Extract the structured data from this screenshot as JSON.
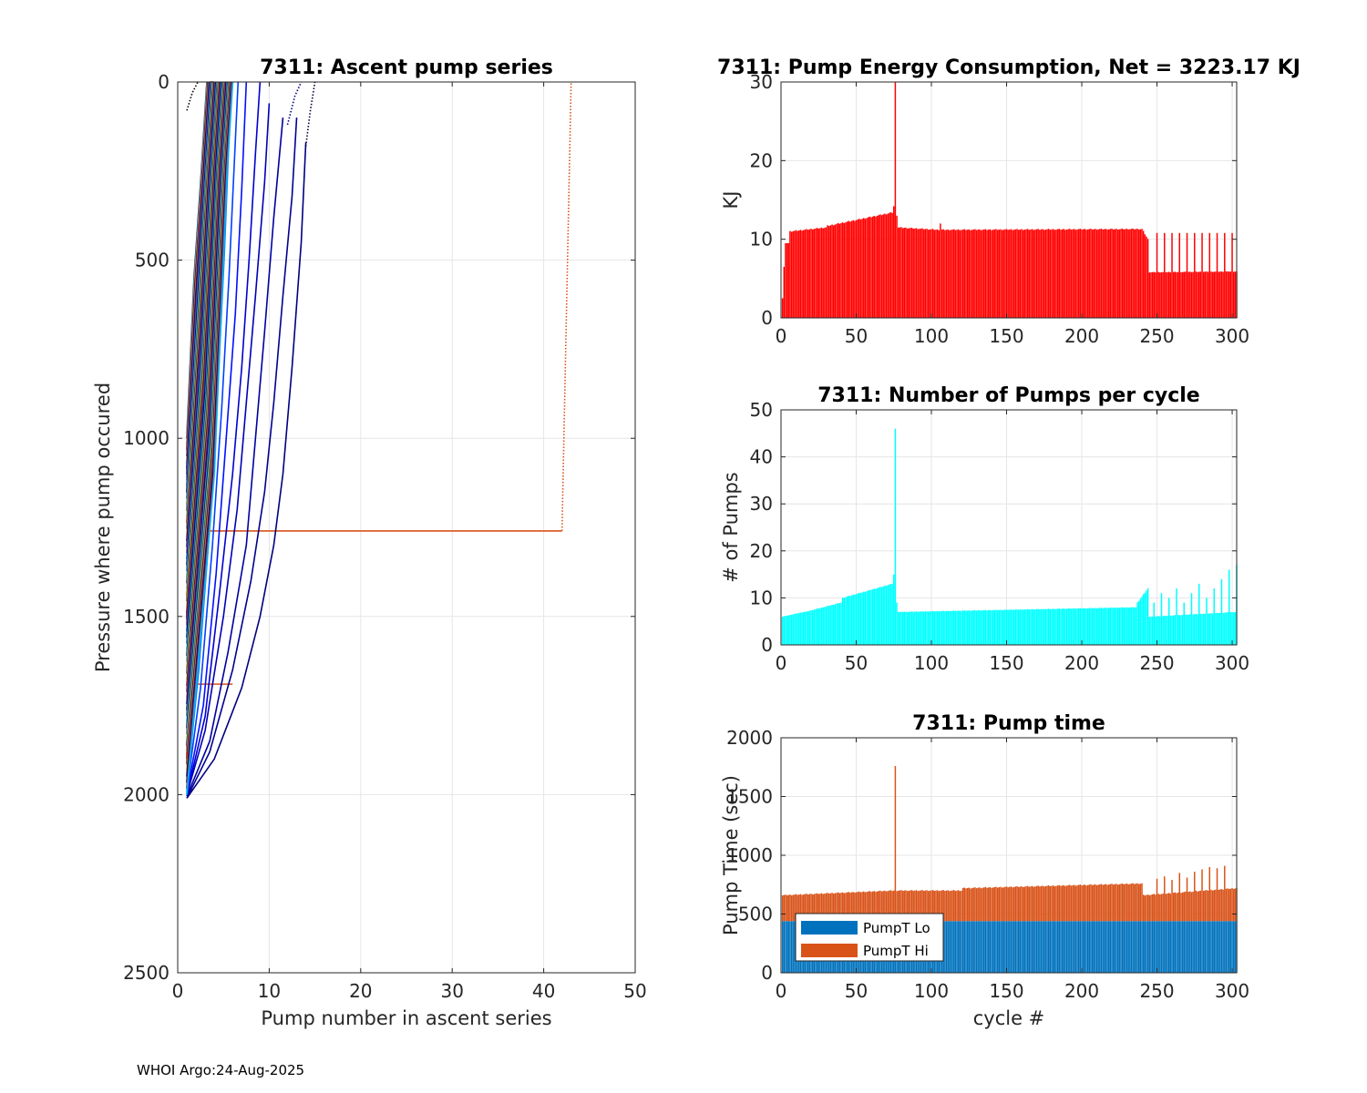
{
  "footer": "WHOI Argo:24-Aug-2025",
  "chart_data": [
    {
      "id": "ascent",
      "type": "line",
      "title": "7311: Ascent pump series",
      "xlabel": "Pump number in ascent series",
      "ylabel": "Pressure where pump occured",
      "xlim": [
        0,
        50
      ],
      "ylim": [
        0,
        2500
      ],
      "y_reversed": true,
      "xticks": [
        0,
        10,
        20,
        30,
        40,
        50
      ],
      "yticks": [
        0,
        500,
        1000,
        1500,
        2000,
        2500
      ],
      "grid": true,
      "colormap": "jet",
      "series": [
        {
          "name": "outlier",
          "color": "#d95319",
          "dotted_from": 1,
          "x": [
            1,
            42,
            42,
            43
          ],
          "y": [
            1260,
            1260,
            1260,
            0
          ]
        },
        {
          "name": "c1",
          "color": "#00007f",
          "x": [
            1,
            4,
            7,
            9,
            10.5,
            11.5,
            12.5,
            13.5,
            14
          ],
          "y": [
            2010,
            1900,
            1700,
            1500,
            1300,
            1100,
            800,
            450,
            170
          ]
        },
        {
          "name": "c2",
          "color": "#00008f",
          "x": [
            1,
            3.5,
            6,
            8,
            9.5,
            10.5,
            11.5,
            12.5,
            13
          ],
          "y": [
            2010,
            1880,
            1650,
            1400,
            1150,
            900,
            600,
            320,
            100
          ]
        },
        {
          "name": "c3",
          "color": "#0000a0",
          "x": [
            1,
            3.5,
            5.5,
            7.5,
            8.5,
            9.5,
            10.5,
            11.5
          ],
          "y": [
            2005,
            1850,
            1600,
            1300,
            1000,
            700,
            380,
            100
          ]
        },
        {
          "name": "c4",
          "color": "#0000b5",
          "x": [
            1,
            3,
            5,
            6.5,
            7.5,
            8.5,
            9.5,
            10
          ],
          "y": [
            2000,
            1820,
            1500,
            1200,
            900,
            600,
            280,
            60
          ]
        },
        {
          "name": "c5",
          "color": "#0000cf",
          "x": [
            1,
            3,
            4.5,
            6,
            7,
            7.8,
            8.5,
            9
          ],
          "y": [
            2000,
            1780,
            1450,
            1100,
            800,
            500,
            200,
            0
          ]
        },
        {
          "name": "c6",
          "color": "#0010ff",
          "x": [
            1,
            2.8,
            4.2,
            5.3,
            6.3,
            7,
            7.5
          ],
          "y": [
            1995,
            1750,
            1380,
            1000,
            650,
            300,
            0
          ]
        },
        {
          "name": "c7",
          "color": "#0040ff",
          "x": [
            1,
            2.5,
            3.8,
            4.8,
            5.6,
            6.2,
            6.6
          ],
          "y": [
            1990,
            1700,
            1300,
            920,
            550,
            220,
            0
          ]
        },
        {
          "name": "c8",
          "color": "#0070ff",
          "x": [
            1,
            2.3,
            3.5,
            4.4,
            5.1,
            5.6,
            6
          ],
          "y": [
            1985,
            1650,
            1250,
            850,
            480,
            160,
            0
          ]
        },
        {
          "name": "c9",
          "color": "#00a0ff",
          "x": [
            1,
            2.2,
            3.2,
            4,
            4.7,
            5.2,
            5.6
          ],
          "y": [
            1980,
            1600,
            1180,
            780,
            420,
            120,
            0
          ]
        },
        {
          "name": "c10",
          "color": "#00d0ff",
          "x": [
            1,
            2,
            3,
            3.8,
            4.4,
            4.9,
            5.3
          ],
          "y": [
            1970,
            1550,
            1120,
            720,
            380,
            100,
            0
          ]
        },
        {
          "name": "c11",
          "color": "#20ffdf",
          "x": [
            1,
            1.9,
            2.8,
            3.6,
            4.2,
            4.7,
            5
          ],
          "y": [
            1960,
            1500,
            1070,
            680,
            340,
            80,
            0
          ]
        },
        {
          "name": "c12",
          "color": "#60ff9f",
          "x": [
            1,
            1.8,
            2.6,
            3.4,
            4,
            4.5,
            4.8
          ],
          "y": [
            1950,
            1460,
            1030,
            640,
            310,
            60,
            0
          ]
        },
        {
          "name": "c13",
          "color": "#a0ff5f",
          "x": [
            1,
            1.7,
            2.5,
            3.2,
            3.8,
            4.3,
            4.6
          ],
          "y": [
            1940,
            1420,
            990,
            600,
            290,
            50,
            0
          ]
        },
        {
          "name": "c14",
          "color": "#e0ff1f",
          "x": [
            1,
            1.6,
            2.4,
            3.1,
            3.7,
            4.2,
            4.5
          ],
          "y": [
            1930,
            1380,
            950,
            570,
            270,
            40,
            0
          ]
        },
        {
          "name": "c15",
          "color": "#ffd000",
          "x": [
            1,
            1.5,
            2.3,
            3,
            3.6,
            4.1,
            4.4
          ],
          "y": [
            1920,
            1350,
            920,
            540,
            250,
            30,
            0
          ]
        },
        {
          "name": "c16",
          "color": "#ff9000",
          "x": [
            1,
            1.45,
            2.2,
            2.9,
            3.5,
            4,
            4.3
          ],
          "y": [
            1910,
            1320,
            890,
            510,
            230,
            20,
            0
          ]
        },
        {
          "name": "c17",
          "color": "#ff5000",
          "x": [
            1,
            1.4,
            2.1,
            2.8,
            3.4,
            3.9,
            4.2
          ],
          "y": [
            1900,
            1290,
            860,
            490,
            210,
            15,
            0
          ]
        },
        {
          "name": "c18",
          "color": "#ff1000",
          "x": [
            1,
            1.35,
            2,
            2.7,
            3.3,
            3.8,
            4.1
          ],
          "y": [
            1890,
            1260,
            830,
            470,
            190,
            10,
            0
          ]
        },
        {
          "name": "c19",
          "color": "#cf0000",
          "x": [
            1,
            1.3,
            1.9,
            2.6,
            3.2,
            3.7,
            4
          ],
          "y": [
            1880,
            1230,
            800,
            450,
            170,
            5,
            0
          ]
        },
        {
          "name": "c20",
          "color": "#8f0000",
          "x": [
            1,
            1.3,
            1.8,
            2.5,
            3.1,
            3.6,
            3.9
          ],
          "y": [
            1520,
            1180,
            770,
            430,
            160,
            0,
            0
          ]
        },
        {
          "name": "c21",
          "color": "#7f0000",
          "x": [
            1,
            1.5,
            2.2,
            2.9,
            3.5,
            3.8
          ],
          "y": [
            1500,
            1050,
            650,
            350,
            100,
            0
          ]
        },
        {
          "name": "c22",
          "color": "#00003f",
          "x": [
            1,
            1.5,
            2.2,
            2.9,
            3.6,
            4.2,
            4.6
          ],
          "y": [
            1170,
            950,
            700,
            450,
            230,
            60,
            0
          ]
        },
        {
          "name": "c23",
          "color": "#000050",
          "x": [
            1,
            1.6,
            2.4,
            3.1,
            3.8,
            4.3,
            4.7
          ],
          "y": [
            1150,
            920,
            660,
            420,
            200,
            40,
            0
          ]
        },
        {
          "name": "c24",
          "color": "#000060",
          "x": [
            1,
            1.7,
            2.5,
            3.3,
            4,
            4.5,
            4.9
          ],
          "y": [
            1130,
            900,
            630,
            390,
            180,
            30,
            0
          ]
        },
        {
          "name": "c25",
          "color": "#000070",
          "x": [
            1,
            1.8,
            2.6,
            3.4,
            4.1,
            4.6,
            5
          ],
          "y": [
            1110,
            880,
            610,
            370,
            160,
            20,
            0
          ]
        },
        {
          "name": "c26",
          "color": "#0000ff",
          "x": [
            1,
            1.9,
            2.8,
            3.6,
            4.3,
            4.8,
            5.2
          ],
          "y": [
            1090,
            850,
            580,
            340,
            150,
            20,
            0
          ]
        },
        {
          "name": "c27",
          "color": "#0030ff",
          "x": [
            1,
            2,
            2.9,
            3.7,
            4.4,
            4.9,
            5.3
          ],
          "y": [
            1070,
            820,
            560,
            320,
            130,
            10,
            0
          ]
        },
        {
          "name": "c28",
          "color": "#0060ff",
          "x": [
            1,
            2.1,
            3,
            3.8,
            4.5,
            5,
            5.4
          ],
          "y": [
            1050,
            800,
            540,
            300,
            120,
            10,
            0
          ]
        },
        {
          "name": "c29",
          "color": "#0090ff",
          "x": [
            1,
            2.2,
            3.1,
            3.9,
            4.6,
            5.1,
            5.5
          ],
          "y": [
            1030,
            780,
            520,
            290,
            110,
            5,
            0
          ]
        },
        {
          "name": "c30",
          "color": "#000000",
          "dotted": true,
          "x": [
            1,
            1.6,
            2.2
          ],
          "y": [
            80,
            30,
            0
          ]
        },
        {
          "name": "c31",
          "color": "#00003f",
          "dotted": true,
          "x": [
            14,
            14.5,
            15
          ],
          "y": [
            180,
            80,
            0
          ]
        },
        {
          "name": "c32",
          "color": "#00007f",
          "dotted": true,
          "x": [
            12,
            12.8,
            13.5
          ],
          "y": [
            120,
            40,
            0
          ]
        }
      ]
    },
    {
      "id": "energy",
      "type": "bar",
      "title": "7311: Pump Energy Consumption,  Net = 3223.17 KJ",
      "xlabel": "",
      "ylabel": "KJ",
      "xlim": [
        0,
        303
      ],
      "ylim": [
        0,
        30
      ],
      "xticks": [
        0,
        50,
        100,
        150,
        200,
        250,
        300
      ],
      "yticks": [
        0,
        10,
        20,
        30
      ],
      "grid": true,
      "color": "#ff0000",
      "segments": [
        {
          "from": 1,
          "to": 1,
          "value": 2.5
        },
        {
          "from": 2,
          "to": 2,
          "value": 6.5
        },
        {
          "from": 3,
          "to": 5,
          "value": 9.5
        },
        {
          "from": 6,
          "to": 30,
          "value_start": 11.0,
          "value_end": 11.5
        },
        {
          "from": 31,
          "to": 74,
          "value_start": 11.7,
          "value_end": 13.4
        },
        {
          "from": 75,
          "to": 75,
          "value": 14.2
        },
        {
          "from": 76,
          "to": 76,
          "value": 30
        },
        {
          "from": 77,
          "to": 77,
          "value": 13.0
        },
        {
          "from": 78,
          "to": 105,
          "value_start": 11.5,
          "value_end": 11.2
        },
        {
          "from": 106,
          "to": 106,
          "value": 12.0
        },
        {
          "from": 107,
          "to": 240,
          "value_start": 11.2,
          "value_end": 11.3
        },
        {
          "from": 241,
          "to": 244,
          "value_start": 11.0,
          "value_end": 10.0
        },
        {
          "from": 245,
          "to": 303,
          "value_start": 5.8,
          "value_end": 5.9
        }
      ],
      "spikes_every_5_after_245": 10.8
    },
    {
      "id": "pumps",
      "type": "bar",
      "title": "7311: Number of Pumps per cycle",
      "xlabel": "",
      "ylabel": "# of Pumps",
      "xlim": [
        0,
        303
      ],
      "ylim": [
        0,
        50
      ],
      "xticks": [
        0,
        50,
        100,
        150,
        200,
        250,
        300
      ],
      "yticks": [
        0,
        10,
        20,
        30,
        40,
        50
      ],
      "grid": true,
      "color": "#00ffff",
      "segments": [
        {
          "from": 1,
          "to": 15,
          "value_start": 6,
          "value_end": 7
        },
        {
          "from": 16,
          "to": 40,
          "value_start": 7,
          "value_end": 9
        },
        {
          "from": 41,
          "to": 74,
          "value_start": 10,
          "value_end": 13
        },
        {
          "from": 75,
          "to": 75,
          "value": 15
        },
        {
          "from": 76,
          "to": 76,
          "value": 46
        },
        {
          "from": 77,
          "to": 77,
          "value": 9
        },
        {
          "from": 78,
          "to": 236,
          "value_start": 7,
          "value_end": 8
        },
        {
          "from": 237,
          "to": 244,
          "value_start": 9,
          "value_end": 12
        },
        {
          "from": 245,
          "to": 303,
          "value_start": 6,
          "value_end": 7
        }
      ],
      "spikes_after_245": [
        9,
        11,
        10,
        12,
        9,
        11,
        13,
        10,
        12,
        14,
        16,
        17
      ]
    },
    {
      "id": "pumptime",
      "type": "bar",
      "stacked": true,
      "title": "7311: Pump time",
      "xlabel": "cycle #",
      "ylabel": "Pump Time (sec)",
      "xlim": [
        0,
        303
      ],
      "ylim": [
        0,
        2000
      ],
      "xticks": [
        0,
        50,
        100,
        150,
        200,
        250,
        300
      ],
      "yticks": [
        0,
        500,
        1000,
        1500,
        2000
      ],
      "grid": true,
      "legend": {
        "position": "bottom-left",
        "entries": [
          {
            "label": "PumpT Lo",
            "color": "#0072bd"
          },
          {
            "label": "PumpT Hi",
            "color": "#d95319"
          }
        ]
      },
      "series": [
        {
          "name": "PumpT Lo",
          "color": "#0072bd",
          "value": 440
        },
        {
          "name": "PumpT Hi",
          "color": "#d95319",
          "segments": [
            {
              "from": 1,
              "to": 75,
              "total_start": 660,
              "total_end": 700
            },
            {
              "from": 76,
              "to": 76,
              "total": 1760
            },
            {
              "from": 77,
              "to": 120,
              "total_start": 700,
              "total_end": 700
            },
            {
              "from": 121,
              "to": 240,
              "total_start": 720,
              "total_end": 760
            },
            {
              "from": 241,
              "to": 303,
              "total_start": 660,
              "total_end": 720
            }
          ]
        }
      ],
      "spikes_after_245": [
        800,
        820,
        790,
        850,
        810,
        860,
        880,
        900,
        890,
        910
      ]
    }
  ]
}
